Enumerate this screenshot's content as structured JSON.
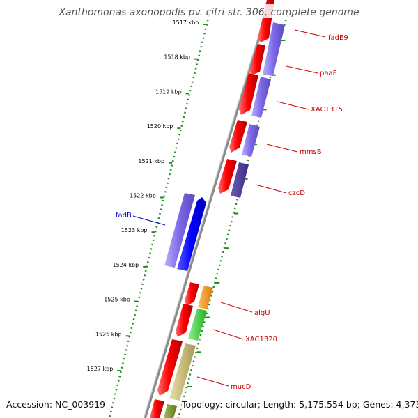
{
  "title": "Xanthomonas axonopodis pv. citri str. 306, complete genome",
  "footer": {
    "accession": "Accession: NC_003919",
    "topology": "Topology: circular; Length: 5,175,554 bp; Genes: 4,373"
  },
  "colors": {
    "backbone": "#8a8a8a",
    "tick_track": "#1e8a1e",
    "forward_label": "#cc0000",
    "reverse_label": "#0000cc"
  },
  "kbp_ticks": [
    "1517 kbp",
    "1518 kbp",
    "1519 kbp",
    "1520 kbp",
    "1521 kbp",
    "1522 kbp",
    "1523 kbp",
    "1524 kbp",
    "1525 kbp",
    "1526 kbp",
    "1527 kbp"
  ],
  "genes": [
    {
      "label": "fadE9",
      "color": "#cc0000"
    },
    {
      "label": "paaF",
      "color": "#cc0000"
    },
    {
      "label": "XAC1315",
      "color": "#cc0000"
    },
    {
      "label": "mmsB",
      "color": "#cc0000"
    },
    {
      "label": "czcD",
      "color": "#cc0000"
    },
    {
      "label": "fadB",
      "color": "#0000cc"
    },
    {
      "label": "algU",
      "color": "#cc0000"
    },
    {
      "label": "XAC1320",
      "color": "#cc0000"
    },
    {
      "label": "mucD",
      "color": "#cc0000"
    }
  ]
}
